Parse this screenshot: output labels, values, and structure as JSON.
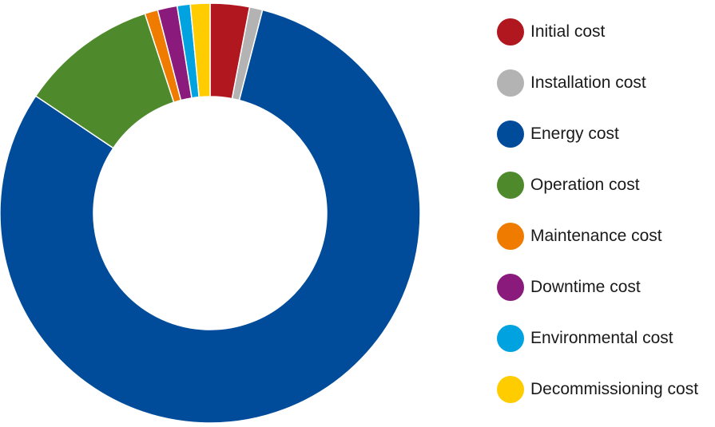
{
  "chart_data": {
    "type": "pie",
    "title": "",
    "legend_position": "right",
    "categories": [
      "Initial cost",
      "Installation cost",
      "Energy cost",
      "Operation cost",
      "Maintenance cost",
      "Downtime cost",
      "Environmental cost",
      "Decommissioning cost"
    ],
    "values": [
      3,
      1,
      80,
      10.5,
      1,
      1.5,
      1,
      1.5
    ],
    "value_unit": "percent",
    "colors": [
      "#b0171f",
      "#b3b3b3",
      "#004c9a",
      "#4e8a2c",
      "#ef7c00",
      "#8a1a7b",
      "#00a3e0",
      "#ffcc00"
    ]
  }
}
